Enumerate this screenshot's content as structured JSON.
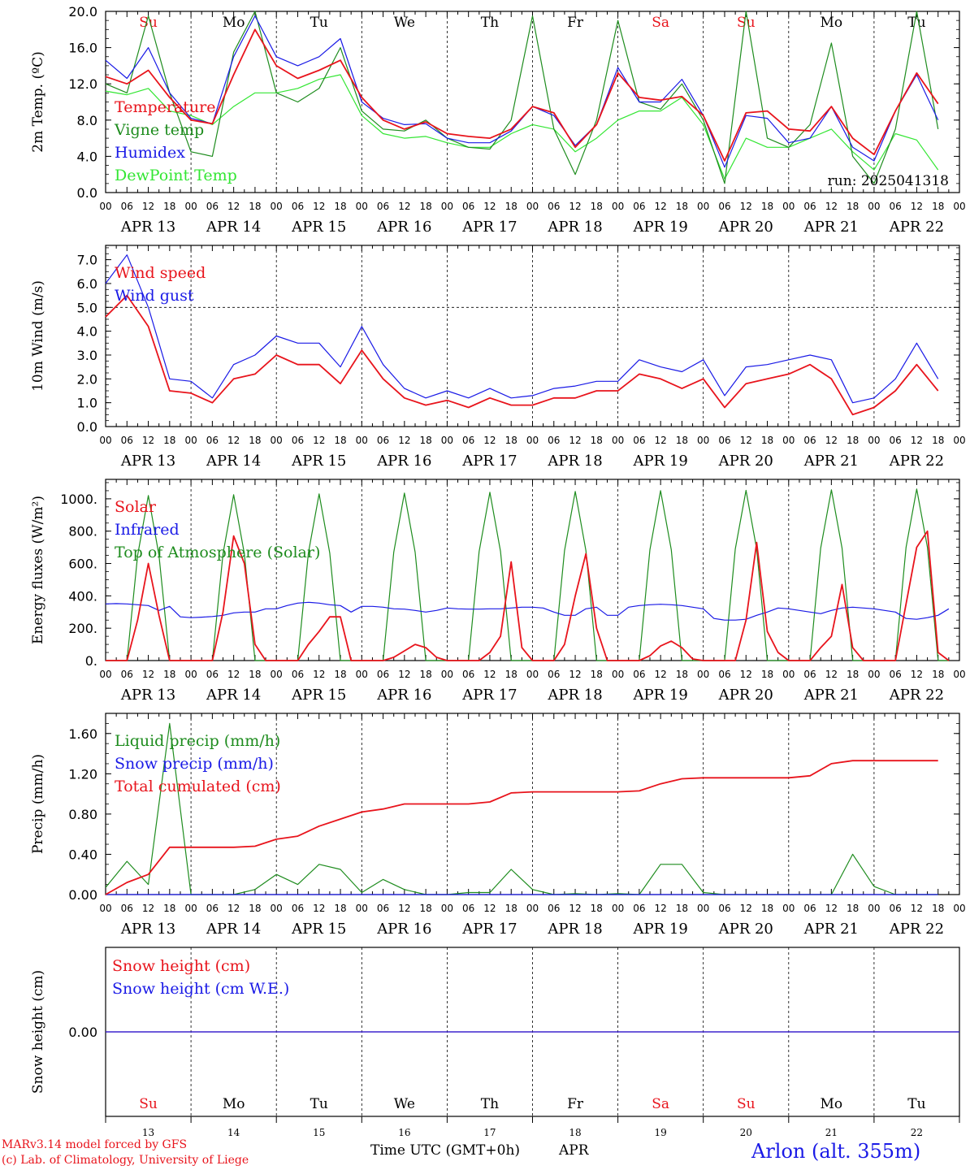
{
  "colors": {
    "red": "#e8141c",
    "green": "#1e8c1e",
    "blue": "#1a1ae6",
    "lightgreen": "#33e633",
    "black": "#000000"
  },
  "days": {
    "labels": [
      "Su",
      "Mo",
      "Tu",
      "We",
      "Th",
      "Fr",
      "Sa",
      "Su",
      "Mo",
      "Tu"
    ],
    "label_colors": [
      "red",
      "black",
      "black",
      "black",
      "black",
      "black",
      "red",
      "red",
      "black",
      "black"
    ],
    "dates": [
      "APR 13",
      "APR 14",
      "APR 15",
      "APR 16",
      "APR 17",
      "APR 18",
      "APR 19",
      "APR 20",
      "APR 21",
      "APR 22"
    ],
    "numbers": [
      "13",
      "14",
      "15",
      "16",
      "17",
      "18",
      "19",
      "20",
      "21",
      "22"
    ]
  },
  "hour_ticks": [
    "00",
    "06",
    "12",
    "18"
  ],
  "footer": {
    "model": "MARv3.14 model forced by GFS",
    "lab": "(c) Lab. of Climatology, University of Liege",
    "xlabel": "Time UTC (GMT+0h)",
    "month": "APR",
    "station": "Arlon (alt. 355m)"
  },
  "chart_data": [
    {
      "type": "line",
      "ylabel": "2m Temp. (ºC)",
      "ylim": [
        0,
        20
      ],
      "yticks": [
        "0.0",
        "4.0",
        "8.0",
        "12.0",
        "16.0",
        "20.0"
      ],
      "annotation": "run: 2025041318",
      "x_hours": [
        0,
        6,
        12,
        18,
        24,
        30,
        36,
        42,
        48,
        54,
        60,
        66,
        72,
        78,
        84,
        90,
        96,
        102,
        108,
        114,
        120,
        126,
        132,
        138,
        144,
        150,
        156,
        162,
        168,
        174,
        180,
        186,
        192,
        198,
        204,
        210,
        216,
        222,
        228,
        234
      ],
      "series": [
        {
          "name": "Temperature",
          "color": "red",
          "values": [
            12.8,
            12.0,
            13.5,
            10.5,
            8.0,
            7.6,
            13.0,
            18.0,
            14.0,
            12.6,
            13.5,
            14.6,
            10.5,
            8.0,
            7.0,
            7.8,
            6.5,
            6.2,
            6.0,
            7.0,
            9.5,
            8.8,
            5.0,
            7.5,
            13.2,
            10.5,
            10.2,
            10.6,
            8.5,
            3.5,
            8.8,
            9.0,
            7.0,
            6.8,
            9.5,
            6.0,
            4.2,
            9.0,
            13.2,
            9.8
          ]
        },
        {
          "name": "Vigne temp",
          "color": "green",
          "values": [
            12.0,
            11.0,
            19.5,
            11.0,
            4.5,
            4.0,
            15.5,
            20.0,
            11.0,
            10.0,
            11.5,
            16.0,
            9.0,
            7.0,
            6.8,
            8.0,
            6.0,
            5.0,
            4.8,
            8.0,
            19.5,
            7.0,
            2.0,
            8.0,
            19.0,
            10.0,
            9.2,
            12.0,
            8.0,
            1.0,
            20.0,
            6.0,
            5.0,
            7.5,
            16.5,
            4.0,
            1.0,
            7.0,
            20.0,
            7.0
          ]
        },
        {
          "name": "Humidex",
          "color": "blue",
          "values": [
            14.6,
            12.6,
            16.0,
            11.0,
            8.2,
            7.6,
            15.0,
            19.5,
            15.0,
            14.0,
            15.0,
            17.0,
            10.0,
            8.2,
            7.5,
            7.6,
            6.0,
            5.5,
            5.5,
            6.8,
            9.5,
            8.5,
            5.2,
            7.5,
            13.8,
            10.0,
            10.0,
            12.5,
            8.5,
            2.8,
            8.5,
            8.2,
            5.5,
            6.0,
            9.5,
            5.0,
            3.5,
            9.0,
            13.0,
            8.0
          ]
        },
        {
          "name": "DewPoint Temp",
          "color": "lightgreen",
          "values": [
            11.2,
            10.8,
            11.5,
            9.0,
            8.5,
            7.5,
            9.5,
            11.0,
            11.0,
            11.5,
            12.5,
            13.0,
            8.5,
            6.5,
            6.0,
            6.2,
            5.5,
            5.0,
            5.0,
            6.5,
            7.5,
            7.0,
            4.5,
            6.0,
            8.0,
            9.0,
            9.0,
            10.5,
            7.5,
            1.5,
            6.0,
            5.0,
            5.0,
            6.0,
            7.0,
            4.5,
            2.5,
            6.5,
            5.8,
            2.5
          ]
        }
      ]
    },
    {
      "type": "line",
      "ylabel": "10m Wind (m/s)",
      "ylim": [
        0,
        7.6
      ],
      "yticks": [
        "0.0",
        "1.0",
        "2.0",
        "3.0",
        "4.0",
        "5.0",
        "6.0",
        "7.0"
      ],
      "ref_line": 5.0,
      "x_hours": [
        0,
        6,
        12,
        18,
        24,
        30,
        36,
        42,
        48,
        54,
        60,
        66,
        72,
        78,
        84,
        90,
        96,
        102,
        108,
        114,
        120,
        126,
        132,
        138,
        144,
        150,
        156,
        162,
        168,
        174,
        180,
        186,
        192,
        198,
        204,
        210,
        216,
        222,
        228,
        234
      ],
      "series": [
        {
          "name": "Wind speed",
          "color": "red",
          "values": [
            4.6,
            5.5,
            4.2,
            1.5,
            1.4,
            1.0,
            2.0,
            2.2,
            3.0,
            2.6,
            2.6,
            1.8,
            3.2,
            2.0,
            1.2,
            0.9,
            1.1,
            0.8,
            1.2,
            0.9,
            0.9,
            1.2,
            1.2,
            1.5,
            1.5,
            2.2,
            2.0,
            1.6,
            2.0,
            0.8,
            1.8,
            2.0,
            2.2,
            2.6,
            2.0,
            0.5,
            0.8,
            1.5,
            2.6,
            1.5
          ]
        },
        {
          "name": "Wind gust",
          "color": "blue",
          "values": [
            6.0,
            7.2,
            5.0,
            2.0,
            1.9,
            1.2,
            2.6,
            3.0,
            3.8,
            3.5,
            3.5,
            2.5,
            4.2,
            2.6,
            1.6,
            1.2,
            1.5,
            1.2,
            1.6,
            1.2,
            1.3,
            1.6,
            1.7,
            1.9,
            1.9,
            2.8,
            2.5,
            2.3,
            2.8,
            1.3,
            2.5,
            2.6,
            2.8,
            3.0,
            2.8,
            1.0,
            1.2,
            2.0,
            3.5,
            2.0
          ]
        }
      ]
    },
    {
      "type": "line",
      "ylabel": "Energy fluxes (W/m²)",
      "ylim": [
        0,
        1120
      ],
      "yticks": [
        "0.",
        "200.",
        "400.",
        "600.",
        "800.",
        "1000."
      ],
      "x_hours": [
        0,
        3,
        6,
        9,
        12,
        15,
        18,
        21,
        24,
        27,
        30,
        33,
        36,
        39,
        42,
        45,
        48,
        51,
        54,
        57,
        60,
        63,
        66,
        69,
        72,
        75,
        78,
        81,
        84,
        87,
        90,
        93,
        96,
        99,
        102,
        105,
        108,
        111,
        114,
        117,
        120,
        123,
        126,
        129,
        132,
        135,
        138,
        141,
        144,
        147,
        150,
        153,
        156,
        159,
        162,
        165,
        168,
        171,
        174,
        177,
        180,
        183,
        186,
        189,
        192,
        195,
        198,
        201,
        204,
        207,
        210,
        213,
        216,
        219,
        222,
        225,
        228,
        231,
        234,
        237
      ],
      "series": [
        {
          "name": "Solar",
          "color": "red",
          "values": [
            0,
            0,
            0,
            250,
            600,
            280,
            0,
            0,
            0,
            0,
            0,
            300,
            770,
            600,
            100,
            0,
            0,
            0,
            0,
            100,
            180,
            270,
            270,
            0,
            0,
            0,
            0,
            20,
            60,
            100,
            80,
            20,
            0,
            0,
            0,
            0,
            50,
            150,
            610,
            80,
            0,
            0,
            0,
            100,
            400,
            660,
            200,
            0,
            0,
            0,
            0,
            30,
            90,
            120,
            80,
            10,
            0,
            0,
            0,
            0,
            250,
            730,
            180,
            50,
            0,
            0,
            0,
            80,
            150,
            470,
            80,
            0,
            0,
            0,
            0,
            350,
            700,
            800,
            50,
            0
          ]
        },
        {
          "name": "Infrared",
          "color": "blue",
          "values": [
            350,
            352,
            350,
            345,
            340,
            310,
            335,
            270,
            265,
            268,
            272,
            280,
            295,
            300,
            300,
            320,
            320,
            340,
            355,
            360,
            355,
            345,
            340,
            300,
            335,
            335,
            330,
            320,
            318,
            310,
            300,
            310,
            325,
            320,
            318,
            318,
            320,
            320,
            325,
            330,
            330,
            325,
            300,
            280,
            280,
            320,
            330,
            280,
            280,
            330,
            340,
            345,
            348,
            345,
            340,
            330,
            320,
            260,
            250,
            250,
            255,
            280,
            300,
            325,
            320,
            310,
            300,
            290,
            310,
            325,
            330,
            325,
            320,
            310,
            300,
            260,
            255,
            265,
            280,
            320
          ]
        },
        {
          "name": "Top of Atmosphere (Solar)",
          "color": "green",
          "values": [
            0,
            0,
            0,
            650,
            1020,
            650,
            0,
            0,
            0,
            0,
            0,
            660,
            1025,
            660,
            0,
            0,
            0,
            0,
            0,
            665,
            1030,
            665,
            0,
            0,
            0,
            0,
            0,
            670,
            1035,
            670,
            0,
            0,
            0,
            0,
            0,
            675,
            1040,
            675,
            0,
            0,
            0,
            0,
            0,
            680,
            1045,
            680,
            0,
            0,
            0,
            0,
            0,
            685,
            1050,
            685,
            0,
            0,
            0,
            0,
            0,
            690,
            1052,
            690,
            0,
            0,
            0,
            0,
            0,
            695,
            1055,
            695,
            0,
            0,
            0,
            0,
            0,
            700,
            1060,
            700,
            0,
            0
          ]
        }
      ]
    },
    {
      "type": "line",
      "ylabel": "Precip (mm/h)",
      "ylim": [
        0,
        1.8
      ],
      "yticks": [
        "0.00",
        "0.40",
        "0.80",
        "1.20",
        "1.60"
      ],
      "x_hours": [
        0,
        6,
        12,
        18,
        24,
        30,
        36,
        42,
        48,
        54,
        60,
        66,
        72,
        78,
        84,
        90,
        96,
        102,
        108,
        114,
        120,
        126,
        132,
        138,
        144,
        150,
        156,
        162,
        168,
        174,
        180,
        186,
        192,
        198,
        204,
        210,
        216,
        222,
        228,
        234
      ],
      "series": [
        {
          "name": "Liquid precip (mm/h)",
          "color": "green",
          "values": [
            0.07,
            0.33,
            0.1,
            1.7,
            0.0,
            0.0,
            0.0,
            0.05,
            0.2,
            0.1,
            0.3,
            0.25,
            0.02,
            0.15,
            0.05,
            0.0,
            0.0,
            0.02,
            0.02,
            0.25,
            0.05,
            0.0,
            0.01,
            0.0,
            0.01,
            0.0,
            0.3,
            0.3,
            0.02,
            0.0,
            0.0,
            0.0,
            0.0,
            0.0,
            0.0,
            0.4,
            0.08,
            0.0,
            0.0,
            0.0
          ]
        },
        {
          "name": "Snow precip (mm/h)",
          "color": "blue",
          "values": [
            0,
            0,
            0,
            0,
            0,
            0,
            0,
            0,
            0,
            0,
            0,
            0,
            0,
            0,
            0,
            0,
            0,
            0,
            0,
            0,
            0,
            0,
            0,
            0,
            0,
            0,
            0,
            0,
            0,
            0,
            0,
            0,
            0,
            0,
            0,
            0,
            0,
            0,
            0,
            0
          ]
        },
        {
          "name": "Total cumulated (cm)",
          "color": "red",
          "values": [
            0.0,
            0.12,
            0.2,
            0.47,
            0.47,
            0.47,
            0.47,
            0.48,
            0.55,
            0.58,
            0.68,
            0.75,
            0.82,
            0.85,
            0.9,
            0.9,
            0.9,
            0.9,
            0.92,
            1.01,
            1.02,
            1.02,
            1.02,
            1.02,
            1.02,
            1.03,
            1.1,
            1.15,
            1.16,
            1.16,
            1.16,
            1.16,
            1.16,
            1.18,
            1.3,
            1.33,
            1.33,
            1.33,
            1.33,
            1.33
          ]
        }
      ]
    },
    {
      "type": "line",
      "ylabel": "Snow height (cm)",
      "ylim": [
        -1,
        1
      ],
      "yticks": [
        "0.00"
      ],
      "x_hours": [
        0,
        240
      ],
      "series": [
        {
          "name": "Snow height (cm)",
          "color": "red",
          "values": [
            0,
            0
          ]
        },
        {
          "name": "Snow height (cm W.E.)",
          "color": "blue",
          "values": [
            0,
            0
          ]
        }
      ]
    }
  ]
}
